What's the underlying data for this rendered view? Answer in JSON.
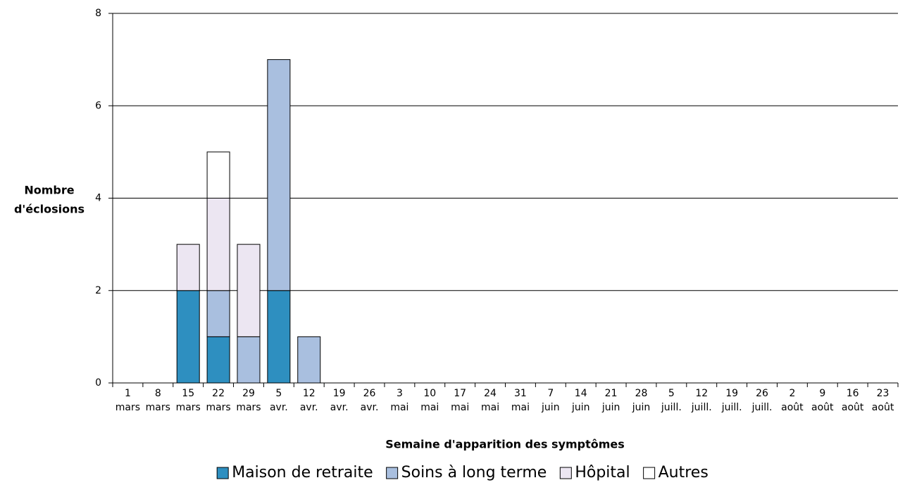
{
  "chart_data": {
    "type": "stacked_bar",
    "y_label": [
      "Nombre",
      "d'éclosions"
    ],
    "x_label": "Semaine d'apparition des symptômes",
    "categories": [
      [
        "1",
        "mars"
      ],
      [
        "8",
        "mars"
      ],
      [
        "15",
        "mars"
      ],
      [
        "22",
        "mars"
      ],
      [
        "29",
        "mars"
      ],
      [
        "5",
        "avr."
      ],
      [
        "12",
        "avr."
      ],
      [
        "19",
        "avr."
      ],
      [
        "26",
        "avr."
      ],
      [
        "3",
        "mai"
      ],
      [
        "10",
        "mai"
      ],
      [
        "17",
        "mai"
      ],
      [
        "24",
        "mai"
      ],
      [
        "31",
        "mai"
      ],
      [
        "7",
        "juin"
      ],
      [
        "14",
        "juin"
      ],
      [
        "21",
        "juin"
      ],
      [
        "28",
        "juin"
      ],
      [
        "5",
        "juill."
      ],
      [
        "12",
        "juill."
      ],
      [
        "19",
        "juill."
      ],
      [
        "26",
        "juill."
      ],
      [
        "2",
        "août"
      ],
      [
        "9",
        "août"
      ],
      [
        "16",
        "août"
      ],
      [
        "23",
        "août"
      ]
    ],
    "series": [
      {
        "name": "Maison de retraite",
        "color": "#2e8fc0",
        "values": [
          0,
          0,
          2,
          1,
          0,
          2,
          0,
          0,
          0,
          0,
          0,
          0,
          0,
          0,
          0,
          0,
          0,
          0,
          0,
          0,
          0,
          0,
          0,
          0,
          0,
          0
        ]
      },
      {
        "name": "Soins à long terme",
        "color": "#a9bfdf",
        "values": [
          0,
          0,
          0,
          1,
          1,
          5,
          1,
          0,
          0,
          0,
          0,
          0,
          0,
          0,
          0,
          0,
          0,
          0,
          0,
          0,
          0,
          0,
          0,
          0,
          0,
          0
        ]
      },
      {
        "name": "Hôpital",
        "color": "#ece6f2",
        "values": [
          0,
          0,
          1,
          2,
          2,
          0,
          0,
          0,
          0,
          0,
          0,
          0,
          0,
          0,
          0,
          0,
          0,
          0,
          0,
          0,
          0,
          0,
          0,
          0,
          0,
          0
        ]
      },
      {
        "name": "Autres",
        "color": "#ffffff",
        "values": [
          0,
          0,
          0,
          1,
          0,
          0,
          0,
          0,
          0,
          0,
          0,
          0,
          0,
          0,
          0,
          0,
          0,
          0,
          0,
          0,
          0,
          0,
          0,
          0,
          0,
          0
        ]
      }
    ],
    "ylim": [
      0,
      8
    ],
    "yticks": [
      0,
      2,
      4,
      6,
      8
    ],
    "grid": true,
    "legend": "bottom"
  }
}
